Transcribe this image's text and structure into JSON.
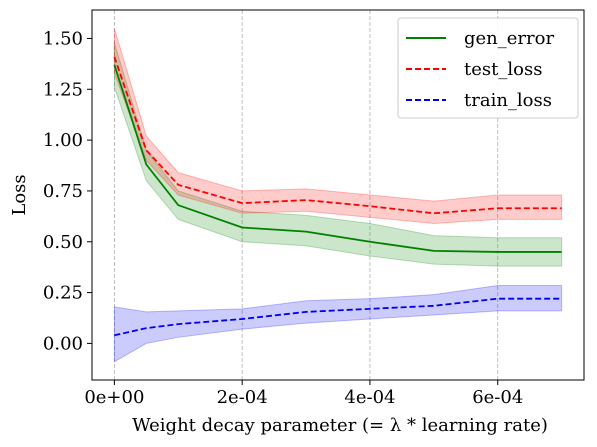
{
  "chart_data": {
    "type": "line",
    "xlabel": "Weight decay parameter (= λ *  learning rate)",
    "ylabel": "Loss",
    "xlim": [
      -3.5e-05,
      0.000735
    ],
    "ylim": [
      -0.18,
      1.64
    ],
    "x_ticks": [
      0,
      0.0002,
      0.0004,
      0.0006
    ],
    "x_tick_labels": [
      "0e+00",
      "2e-04",
      "4e-04",
      "6e-04"
    ],
    "y_ticks": [
      0.0,
      0.25,
      0.5,
      0.75,
      1.0,
      1.25,
      1.5
    ],
    "y_tick_labels": [
      "0.00",
      "0.25",
      "0.50",
      "0.75",
      "1.00",
      "1.25",
      "1.50"
    ],
    "grid": "vertical dashed",
    "legend_position": "top-right",
    "x": [
      0,
      5e-05,
      0.0001,
      0.0002,
      0.0003,
      0.0004,
      0.0005,
      0.0006,
      0.0007
    ],
    "series": [
      {
        "name": "gen_error",
        "color": "#008000",
        "dash": "solid",
        "values": [
          1.37,
          0.88,
          0.68,
          0.57,
          0.55,
          0.5,
          0.455,
          0.45,
          0.45
        ],
        "upper": [
          1.48,
          0.95,
          0.75,
          0.65,
          0.63,
          0.59,
          0.53,
          0.52,
          0.52
        ],
        "lower": [
          1.26,
          0.8,
          0.61,
          0.5,
          0.48,
          0.43,
          0.39,
          0.38,
          0.38
        ]
      },
      {
        "name": "test_loss",
        "color": "#ff0000",
        "dash": "dashed",
        "values": [
          1.41,
          0.95,
          0.78,
          0.69,
          0.705,
          0.675,
          0.64,
          0.665,
          0.665
        ],
        "upper": [
          1.55,
          1.02,
          0.84,
          0.75,
          0.76,
          0.73,
          0.7,
          0.73,
          0.73
        ],
        "lower": [
          1.33,
          0.9,
          0.73,
          0.64,
          0.65,
          0.62,
          0.59,
          0.61,
          0.61
        ]
      },
      {
        "name": "train_loss",
        "color": "#0000ee",
        "dash": "dashed",
        "values": [
          0.04,
          0.075,
          0.095,
          0.12,
          0.155,
          0.17,
          0.185,
          0.22,
          0.22
        ],
        "upper": [
          0.18,
          0.155,
          0.16,
          0.17,
          0.21,
          0.22,
          0.24,
          0.285,
          0.285
        ],
        "lower": [
          -0.09,
          0.0,
          0.03,
          0.07,
          0.1,
          0.12,
          0.14,
          0.16,
          0.16
        ]
      }
    ]
  }
}
